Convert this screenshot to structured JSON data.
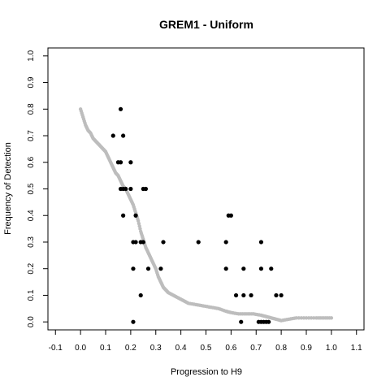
{
  "chart_data": {
    "type": "scatter",
    "title": "GREM1 - Uniform",
    "xlabel": "Progression to H9",
    "ylabel": "Frequency of Detection",
    "xlim": [
      -0.13,
      1.13
    ],
    "ylim": [
      -0.03,
      1.03
    ],
    "xticks": [
      -0.1,
      0.0,
      0.1,
      0.2,
      0.3,
      0.4,
      0.5,
      0.6,
      0.7,
      0.8,
      0.9,
      1.0,
      1.1
    ],
    "yticks": [
      0.0,
      0.1,
      0.2,
      0.3,
      0.4,
      0.5,
      0.6,
      0.7,
      0.8,
      0.9,
      1.0
    ],
    "grid": false,
    "series": [
      {
        "role": "curve",
        "color": "#bdbdbd",
        "points": [
          [
            0.0,
            0.8
          ],
          [
            0.01,
            0.77
          ],
          [
            0.02,
            0.74
          ],
          [
            0.03,
            0.72
          ],
          [
            0.04,
            0.71
          ],
          [
            0.05,
            0.69
          ],
          [
            0.06,
            0.68
          ],
          [
            0.07,
            0.67
          ],
          [
            0.08,
            0.66
          ],
          [
            0.09,
            0.65
          ],
          [
            0.1,
            0.64
          ],
          [
            0.11,
            0.62
          ],
          [
            0.12,
            0.6
          ],
          [
            0.13,
            0.58
          ],
          [
            0.14,
            0.56
          ],
          [
            0.15,
            0.55
          ],
          [
            0.16,
            0.53
          ],
          [
            0.17,
            0.51
          ],
          [
            0.18,
            0.5
          ],
          [
            0.19,
            0.48
          ],
          [
            0.2,
            0.46
          ],
          [
            0.21,
            0.44
          ],
          [
            0.22,
            0.41
          ],
          [
            0.23,
            0.38
          ],
          [
            0.24,
            0.34
          ],
          [
            0.25,
            0.31
          ],
          [
            0.26,
            0.28
          ],
          [
            0.27,
            0.26
          ],
          [
            0.28,
            0.24
          ],
          [
            0.29,
            0.22
          ],
          [
            0.3,
            0.2
          ],
          [
            0.31,
            0.17
          ],
          [
            0.32,
            0.15
          ],
          [
            0.33,
            0.13
          ],
          [
            0.34,
            0.12
          ],
          [
            0.35,
            0.11
          ],
          [
            0.37,
            0.1
          ],
          [
            0.39,
            0.09
          ],
          [
            0.41,
            0.08
          ],
          [
            0.43,
            0.07
          ],
          [
            0.46,
            0.065
          ],
          [
            0.49,
            0.06
          ],
          [
            0.52,
            0.055
          ],
          [
            0.55,
            0.05
          ],
          [
            0.58,
            0.04
          ],
          [
            0.6,
            0.035
          ],
          [
            0.63,
            0.03
          ],
          [
            0.66,
            0.03
          ],
          [
            0.69,
            0.03
          ],
          [
            0.72,
            0.025
          ],
          [
            0.74,
            0.02
          ],
          [
            0.76,
            0.015
          ],
          [
            0.78,
            0.01
          ],
          [
            0.8,
            0.005
          ],
          [
            0.83,
            0.01
          ],
          [
            0.86,
            0.015
          ],
          [
            0.9,
            0.015
          ],
          [
            0.94,
            0.015
          ],
          [
            0.97,
            0.015
          ],
          [
            1.0,
            0.015
          ]
        ]
      },
      {
        "role": "observed",
        "color": "#000000",
        "points": [
          [
            0.16,
            0.8
          ],
          [
            0.13,
            0.7
          ],
          [
            0.17,
            0.7
          ],
          [
            0.15,
            0.6
          ],
          [
            0.16,
            0.6
          ],
          [
            0.2,
            0.6
          ],
          [
            0.16,
            0.5
          ],
          [
            0.17,
            0.5
          ],
          [
            0.18,
            0.5
          ],
          [
            0.2,
            0.5
          ],
          [
            0.25,
            0.5
          ],
          [
            0.26,
            0.5
          ],
          [
            0.17,
            0.4
          ],
          [
            0.22,
            0.4
          ],
          [
            0.21,
            0.3
          ],
          [
            0.22,
            0.3
          ],
          [
            0.24,
            0.3
          ],
          [
            0.25,
            0.3
          ],
          [
            0.33,
            0.3
          ],
          [
            0.47,
            0.3
          ],
          [
            0.58,
            0.3
          ],
          [
            0.72,
            0.3
          ],
          [
            0.59,
            0.4
          ],
          [
            0.6,
            0.4
          ],
          [
            0.21,
            0.2
          ],
          [
            0.27,
            0.2
          ],
          [
            0.32,
            0.2
          ],
          [
            0.58,
            0.2
          ],
          [
            0.65,
            0.2
          ],
          [
            0.72,
            0.2
          ],
          [
            0.76,
            0.2
          ],
          [
            0.24,
            0.1
          ],
          [
            0.62,
            0.1
          ],
          [
            0.65,
            0.1
          ],
          [
            0.68,
            0.1
          ],
          [
            0.78,
            0.1
          ],
          [
            0.8,
            0.1
          ],
          [
            0.21,
            0.0
          ],
          [
            0.64,
            0.0
          ],
          [
            0.71,
            0.0
          ],
          [
            0.72,
            0.0
          ],
          [
            0.73,
            0.0
          ],
          [
            0.74,
            0.0
          ],
          [
            0.75,
            0.0
          ]
        ]
      }
    ]
  }
}
